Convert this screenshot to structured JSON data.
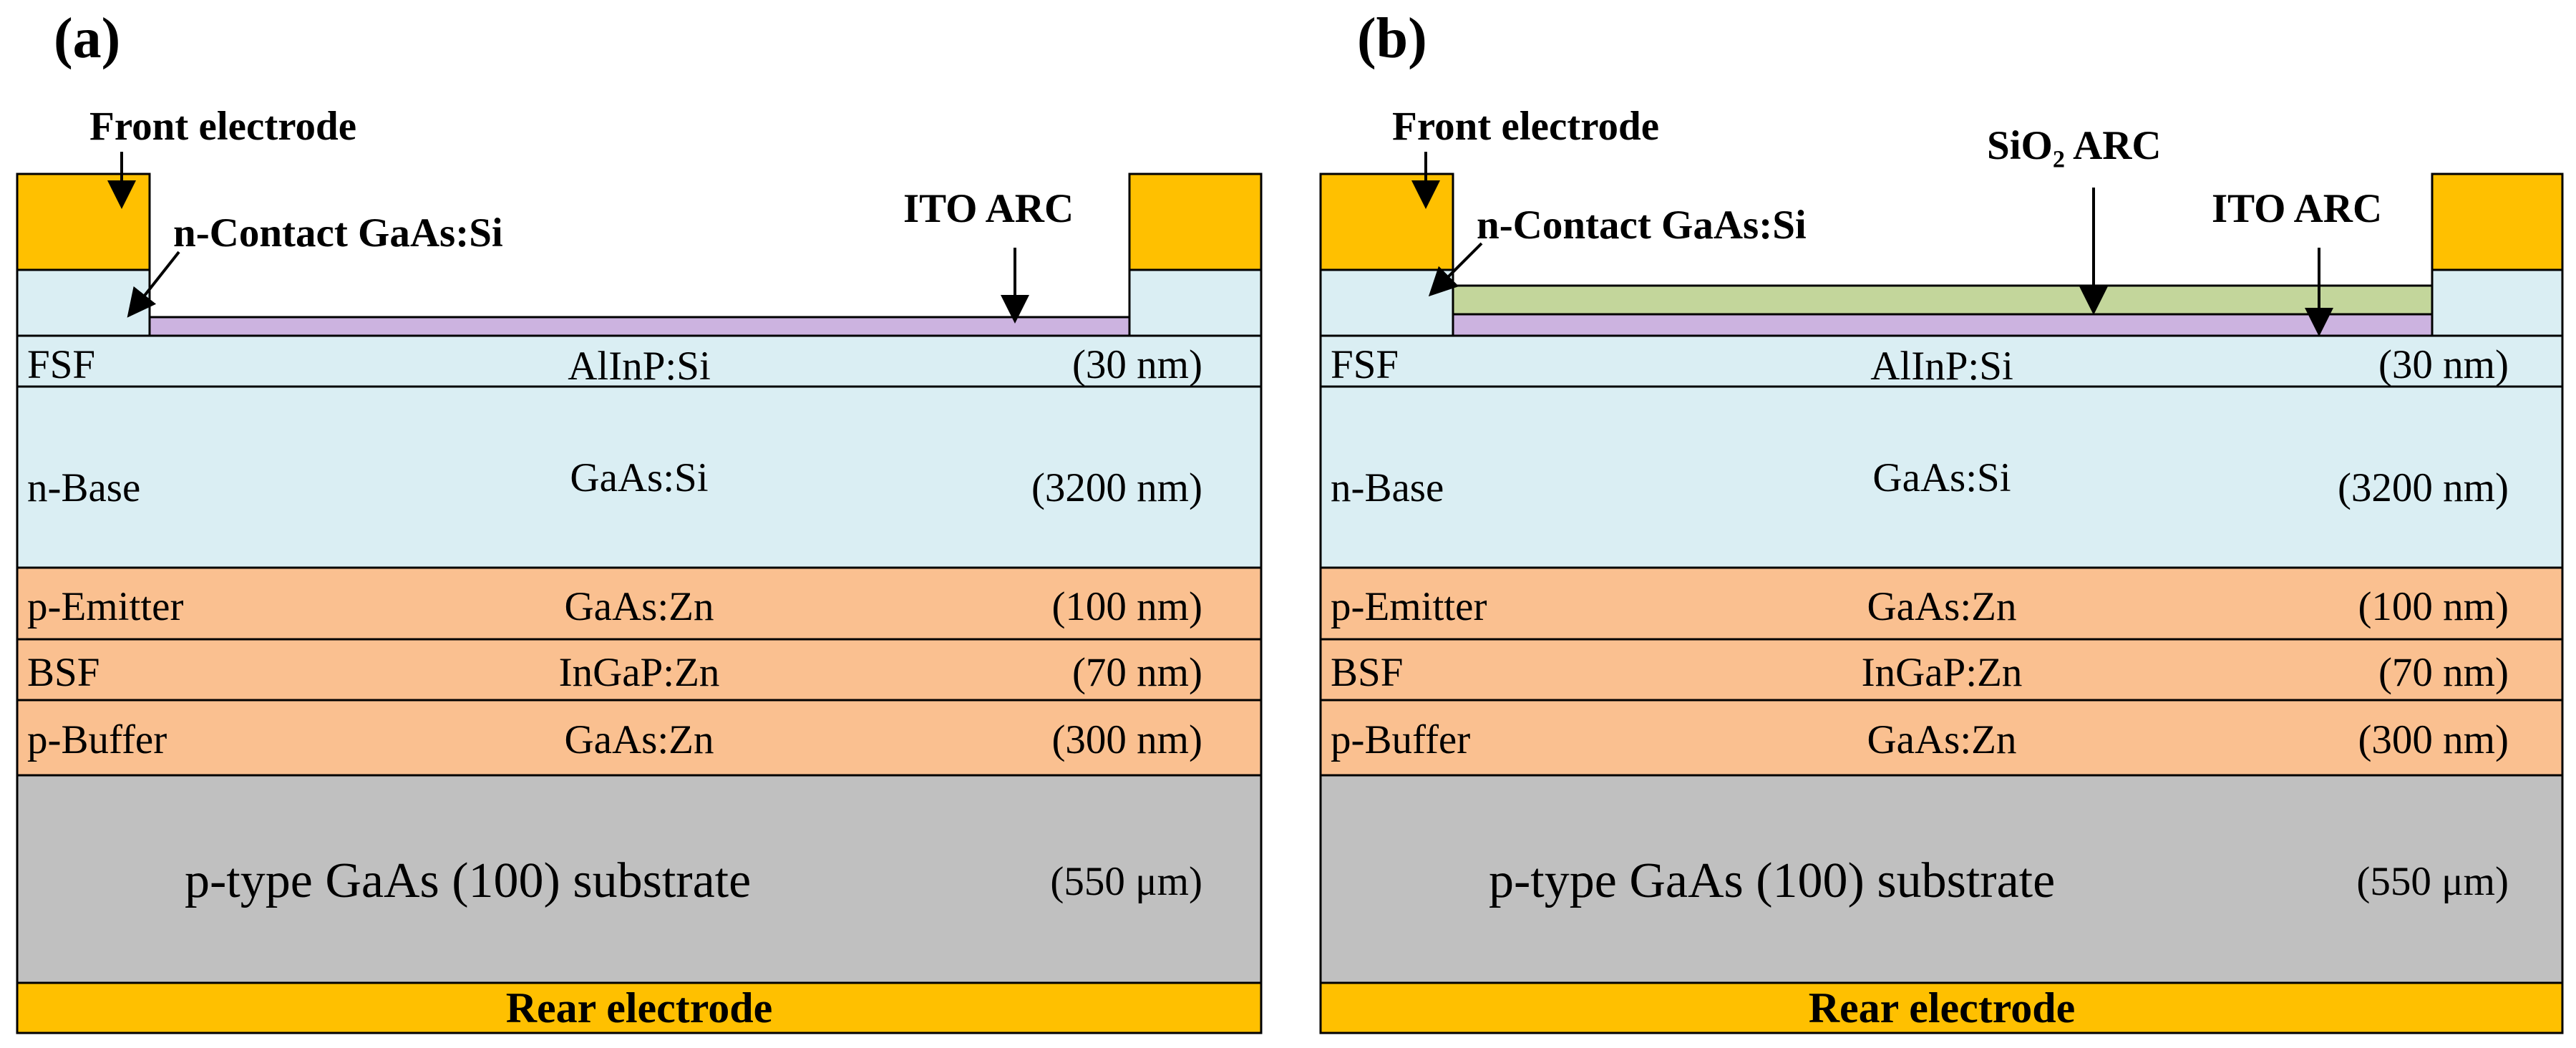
{
  "panels": [
    {
      "label": "(a)",
      "callouts": {
        "front_electrode": "Front electrode",
        "n_contact": "n-Contact GaAs:Si",
        "ito_arc": "ITO ARC"
      },
      "layers": [
        {
          "name": "FSF",
          "material": "AlInP:Si",
          "thickness": "(30  nm)"
        },
        {
          "name": "n-Base",
          "material": "GaAs:Si",
          "thickness": "(3200 nm)"
        },
        {
          "name": "p-Emitter",
          "material": "GaAs:Zn",
          "thickness": "(100 nm)"
        },
        {
          "name": "BSF",
          "material": "InGaP:Zn",
          "thickness": "(70 nm)"
        },
        {
          "name": "p-Buffer",
          "material": "GaAs:Zn",
          "thickness": "(300 nm)"
        }
      ],
      "substrate": {
        "name": "p-type GaAs (100) substrate",
        "thickness": "(550 μm)"
      },
      "rear_electrode": "Rear electrode"
    },
    {
      "label": "(b)",
      "callouts": {
        "front_electrode": "Front electrode",
        "n_contact": "n-Contact GaAs:Si",
        "sio2_arc": "SiO₂ ARC",
        "ito_arc": "ITO ARC"
      },
      "layers": [
        {
          "name": "FSF",
          "material": "AlInP:Si",
          "thickness": "(30  nm)"
        },
        {
          "name": "n-Base",
          "material": "GaAs:Si",
          "thickness": "(3200 nm)"
        },
        {
          "name": "p-Emitter",
          "material": "GaAs:Zn",
          "thickness": "(100 nm)"
        },
        {
          "name": "BSF",
          "material": "InGaP:Zn",
          "thickness": "(70 nm)"
        },
        {
          "name": "p-Buffer",
          "material": "GaAs:Zn",
          "thickness": "(300 nm)"
        }
      ],
      "substrate": {
        "name": "p-type GaAs (100) substrate",
        "thickness": "(550 μm)"
      },
      "rear_electrode": "Rear electrode"
    }
  ],
  "colors": {
    "electrode": "#FFC000",
    "n_layer": "#DAEEF3",
    "p_layer": "#FAC090",
    "substrate": "#C0C0C0",
    "ito": "#CCB3E0",
    "sio2": "#C3D69B",
    "outline": "#000000"
  }
}
